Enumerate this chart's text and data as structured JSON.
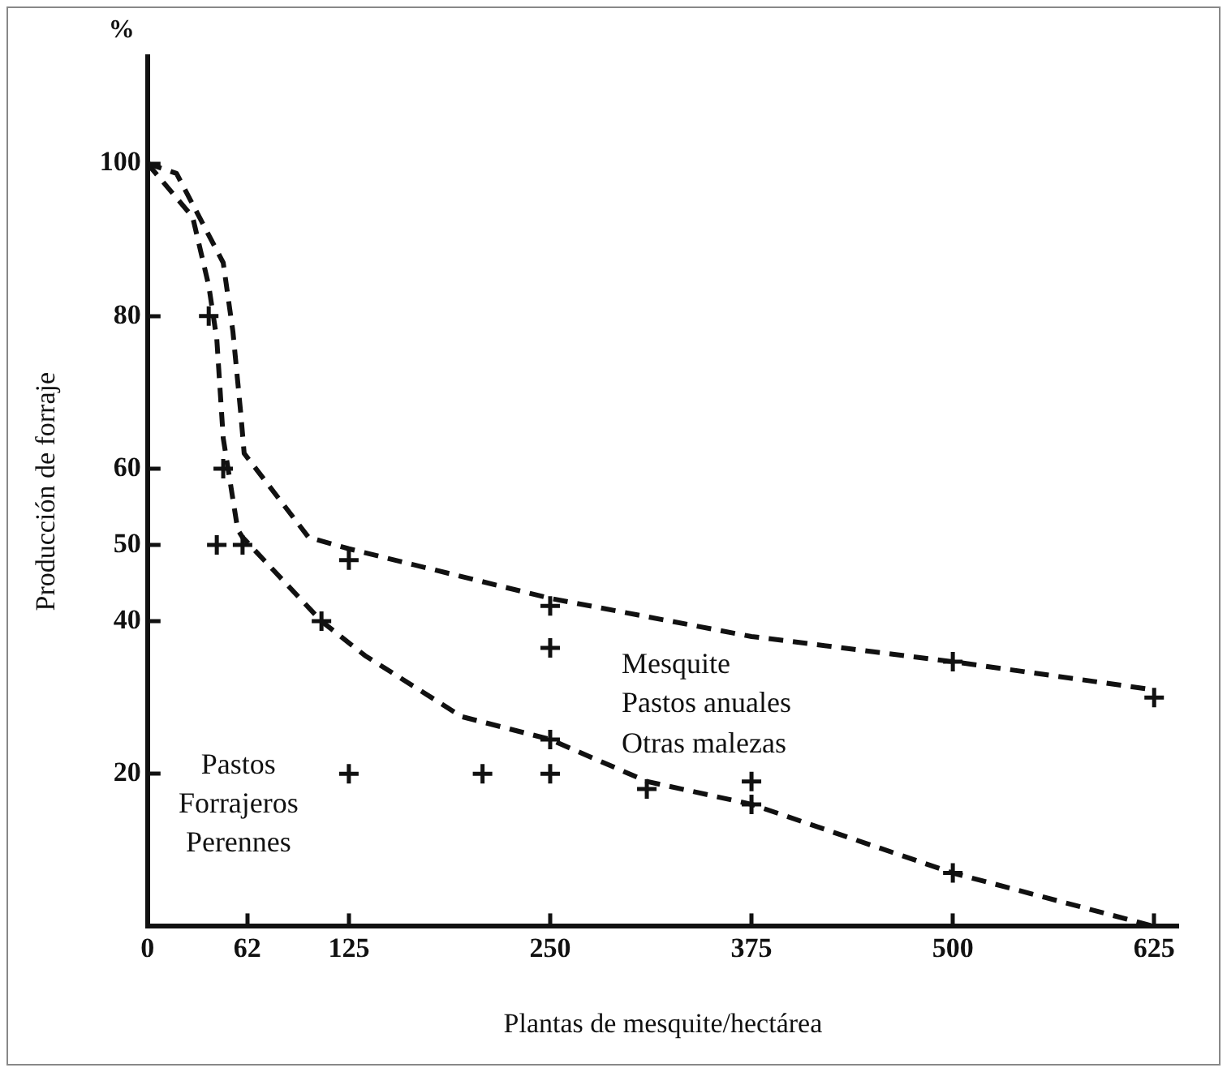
{
  "chart_data": {
    "type": "line",
    "xlabel": "Plantas de mesquite/hectárea",
    "ylabel": "Producción de forraje",
    "xlim": [
      0,
      640
    ],
    "xticks": [
      0,
      62,
      125,
      250,
      375,
      500,
      625
    ],
    "ylim": [
      0,
      114
    ],
    "yticks": [
      20,
      40,
      50,
      60,
      80,
      100
    ],
    "grid": false,
    "legend": false,
    "marker": "none",
    "line_style": "dashed",
    "series": [
      {
        "color": "#111111",
        "x": [
          0,
          18,
          47,
          53,
          58,
          60,
          100,
          125,
          250,
          375,
          500,
          625
        ],
        "values": [
          100,
          98.7,
          87,
          78,
          67,
          62,
          51,
          49.5,
          43,
          38,
          34.7,
          31
        ]
      },
      {
        "color": "#111111",
        "x": [
          0,
          28,
          38,
          43,
          47,
          56,
          59,
          108,
          135,
          195,
          250,
          310,
          375,
          500,
          625
        ],
        "values": [
          100,
          93,
          84,
          77,
          64,
          52,
          51,
          40,
          35.5,
          27.5,
          24.5,
          19,
          16,
          7,
          0
        ]
      },
      {
        "type": "scatter",
        "marker": "cross",
        "color": "#111111",
        "x": [
          38,
          47,
          43,
          59,
          125,
          108,
          125,
          208,
          250,
          250,
          250,
          250,
          310,
          375,
          375,
          500,
          500,
          625
        ],
        "values": [
          80,
          60,
          50,
          50,
          48,
          40,
          20,
          20,
          20,
          36.5,
          42,
          24.5,
          18,
          19,
          16,
          34.7,
          7,
          30
        ]
      }
    ],
    "annotations": [
      "%",
      "Pastos\nForrajeros\nPerennes",
      "Mesquite\nPastos anuales\nOtras malezas"
    ]
  }
}
